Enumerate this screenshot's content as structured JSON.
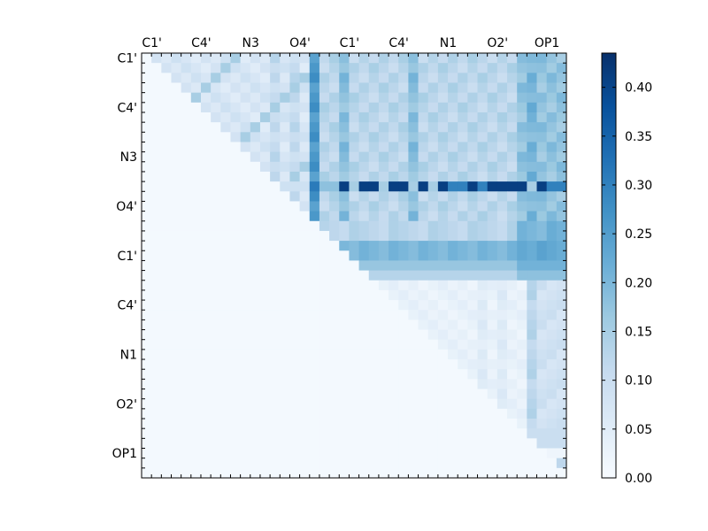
{
  "chart_data": {
    "type": "heatmap",
    "grid_size": 43,
    "x_tick_labels": [
      "C1'",
      "C4'",
      "N3",
      "O4'",
      "C1'",
      "C4'",
      "N1",
      "O2'",
      "OP1"
    ],
    "y_tick_labels": [
      "C1'",
      "C4'",
      "N3",
      "O4'",
      "C1'",
      "C4'",
      "N1",
      "O2'",
      "OP1"
    ],
    "label_every": 5,
    "colorbar": {
      "min": 0.0,
      "max": 0.435,
      "ticks": [
        "0.00",
        "0.05",
        "0.10",
        "0.15",
        "0.20",
        "0.25",
        "0.30",
        "0.35",
        "0.40"
      ],
      "tick_values": [
        0.0,
        0.05,
        0.1,
        0.15,
        0.2,
        0.25,
        0.3,
        0.35,
        0.4
      ]
    },
    "colormap": {
      "name": "Blues",
      "stops": [
        [
          0.0,
          "#f7fbff"
        ],
        [
          0.125,
          "#deebf7"
        ],
        [
          0.25,
          "#c6dbef"
        ],
        [
          0.375,
          "#9ecae1"
        ],
        [
          0.5,
          "#6baed6"
        ],
        [
          0.625,
          "#4292c6"
        ],
        [
          0.75,
          "#2171b5"
        ],
        [
          0.875,
          "#08519c"
        ],
        [
          1.0,
          "#08306b"
        ]
      ]
    },
    "title": "",
    "xlabel": "",
    "ylabel": "",
    "notes": "Upper-triangular matrix of values; strongest band at row index 13 across columns 20–42; column 17 and columns 38–42 moderately high."
  }
}
